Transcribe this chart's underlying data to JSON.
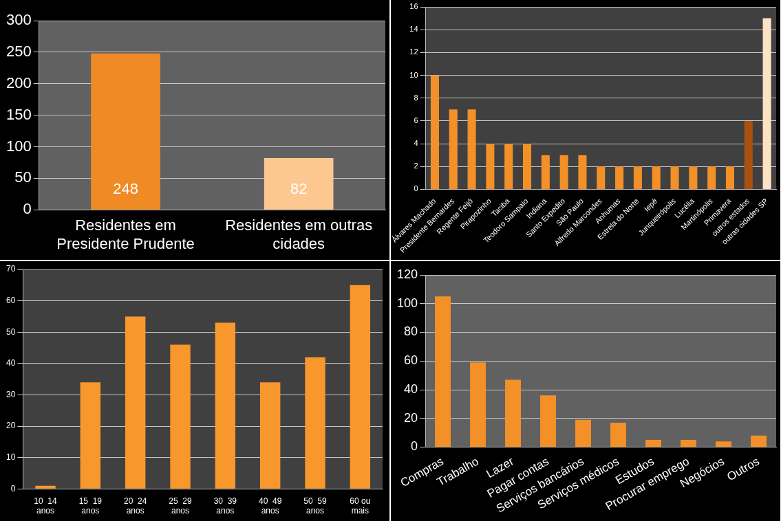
{
  "chart_data": [
    {
      "type": "bar",
      "categories": [
        "Residentes em Presidente Prudente",
        "Residentes em outras cidades"
      ],
      "values": [
        248,
        82
      ],
      "colors": [
        "#f08a24",
        "#fcc890"
      ],
      "ylim": [
        0,
        300
      ],
      "yticks": [
        0,
        50,
        100,
        150,
        200,
        250,
        300
      ],
      "grid": "y",
      "data_labels": true
    },
    {
      "type": "bar",
      "categories": [
        "Álvares Machado",
        "Presidente Bernardes",
        "Regente Feijó",
        "Pirapozinho",
        "Taciba",
        "Teodoro Sampaio",
        "Indiana",
        "Santo Expedito",
        "São Paulo",
        "Alfredo Marcondes",
        "Anhumas",
        "Estrela do Norte",
        "Iepê",
        "Junqueirópolis",
        "Lucélia",
        "Martinópolis",
        "Primavera",
        "outros estados",
        "outras cidades SP"
      ],
      "values": [
        10,
        7,
        7,
        4,
        4,
        4,
        3,
        3,
        3,
        2,
        2,
        2,
        2,
        2,
        2,
        2,
        2,
        6,
        15
      ],
      "colors": [
        "#f39028",
        "#f39028",
        "#f39028",
        "#f39028",
        "#f39028",
        "#f39028",
        "#f39028",
        "#f39028",
        "#f39028",
        "#f39028",
        "#f39028",
        "#f39028",
        "#f39028",
        "#f39028",
        "#f39028",
        "#f39028",
        "#f39028",
        "#a9520f",
        "#fde2c4"
      ],
      "ylim": [
        0,
        16
      ],
      "yticks": [
        0,
        2,
        4,
        6,
        8,
        10,
        12,
        14,
        16
      ],
      "grid": "y"
    },
    {
      "type": "bar",
      "categories": [
        "10  14 anos",
        "15  19 anos",
        "20  24 anos",
        "25  29 anos",
        "30  39 anos",
        "40  49 anos",
        "50  59 anos",
        "60 ou mais"
      ],
      "values": [
        1,
        34,
        55,
        46,
        53,
        34,
        42,
        65
      ],
      "color": "#f7972c",
      "ylim": [
        0,
        70
      ],
      "yticks": [
        0,
        10,
        20,
        30,
        40,
        50,
        60,
        70
      ],
      "grid": "y"
    },
    {
      "type": "bar",
      "categories": [
        "Compras",
        "Trabalho",
        "Lazer",
        "Pagar contas",
        "Serviços bancários",
        "Serviços médicos",
        "Estudos",
        "Procurar emprego",
        "Negócios",
        "Outros"
      ],
      "values": [
        105,
        59,
        47,
        36,
        19,
        17,
        5,
        5,
        4,
        8
      ],
      "color": "#f39028",
      "ylim": [
        0,
        120
      ],
      "yticks": [
        0,
        20,
        40,
        60,
        80,
        100,
        120
      ],
      "grid": "y"
    }
  ]
}
